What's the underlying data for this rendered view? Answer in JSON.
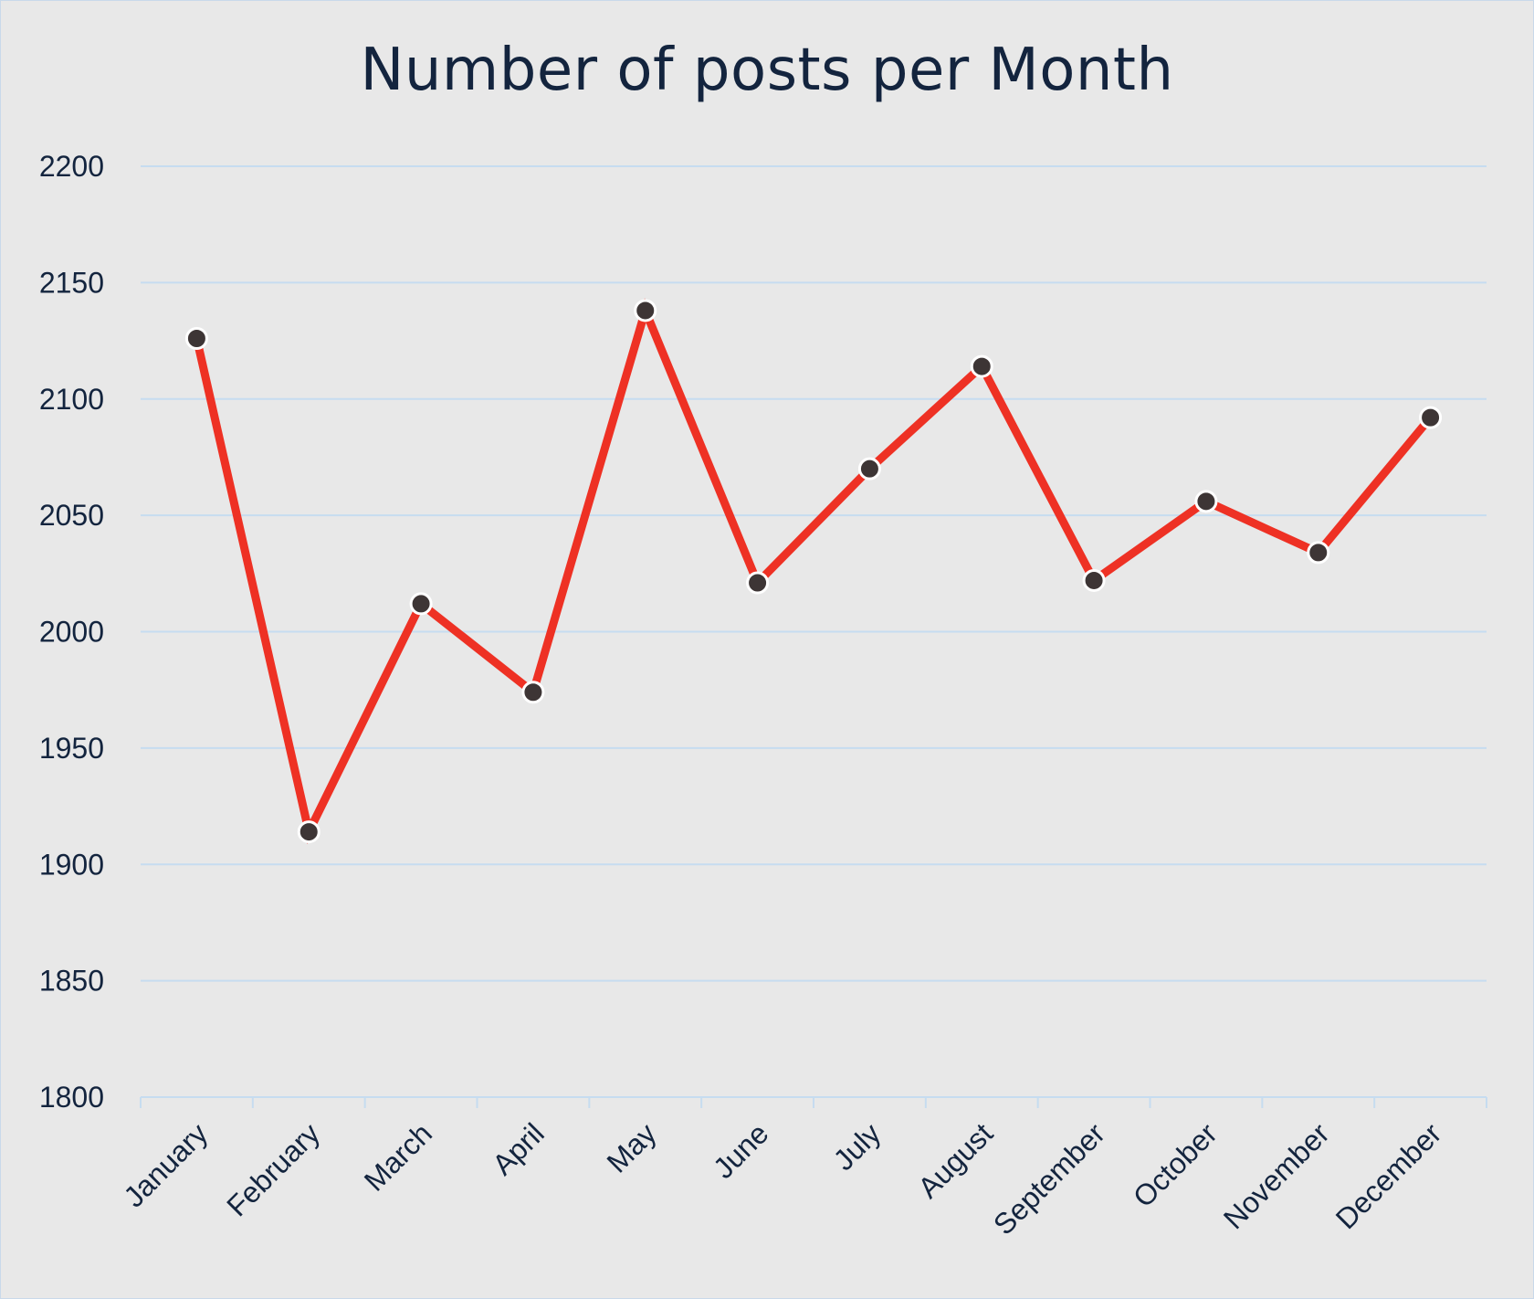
{
  "chart_data": {
    "type": "line",
    "title": "Number of posts per Month",
    "xlabel": "",
    "ylabel": "",
    "categories": [
      "January",
      "February",
      "March",
      "April",
      "May",
      "June",
      "July",
      "August",
      "September",
      "October",
      "November",
      "December"
    ],
    "series": [
      {
        "values": [
          2126,
          1914,
          2012,
          1974,
          2138,
          2021,
          2070,
          2114,
          2022,
          2056,
          2034,
          2092
        ]
      }
    ],
    "ylim": [
      1800,
      2200
    ],
    "yticks": [
      1800,
      1850,
      1900,
      1950,
      2000,
      2050,
      2100,
      2150,
      2200
    ],
    "grid": true,
    "legend": "none",
    "colors": {
      "line": "#ee3124",
      "marker": "#3d3535",
      "marker_edge": "#ffffff",
      "grid": "#c6dcf0",
      "axis": "#c6dcf0",
      "text": "#13243e",
      "background": "#e8e8e8"
    }
  }
}
